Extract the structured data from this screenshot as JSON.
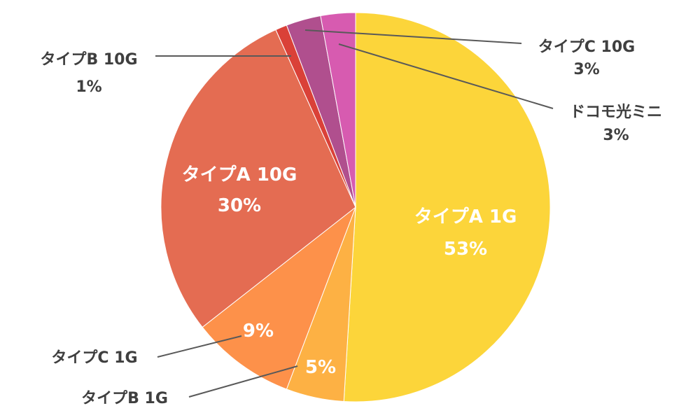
{
  "chart_data": {
    "type": "pie",
    "title": "",
    "start_angle_deg": 0,
    "direction": "clockwise",
    "slices": [
      {
        "label": "タイプA 1G",
        "value": 53,
        "pct_text": "53%",
        "color": "#FCD53A"
      },
      {
        "label": "タイプB 1G",
        "value": 5,
        "pct_text": "5%",
        "color": "#FDB144"
      },
      {
        "label": "タイプC 1G",
        "value": 9,
        "pct_text": "9%",
        "color": "#FD914A"
      },
      {
        "label": "タイプA 10G",
        "value": 30,
        "pct_text": "30%",
        "color": "#E46C52"
      },
      {
        "label": "タイプB 10G",
        "value": 1,
        "pct_text": "1%",
        "color": "#DA4138"
      },
      {
        "label": "タイプC 10G",
        "value": 3,
        "pct_text": "3%",
        "color": "#B04F8E"
      },
      {
        "label": "ドコモ光ミニ",
        "value": 3,
        "pct_text": "3%",
        "color": "#D75BB0"
      }
    ],
    "label_color": "#3f3f3f",
    "leader_line_color": "#595959"
  }
}
